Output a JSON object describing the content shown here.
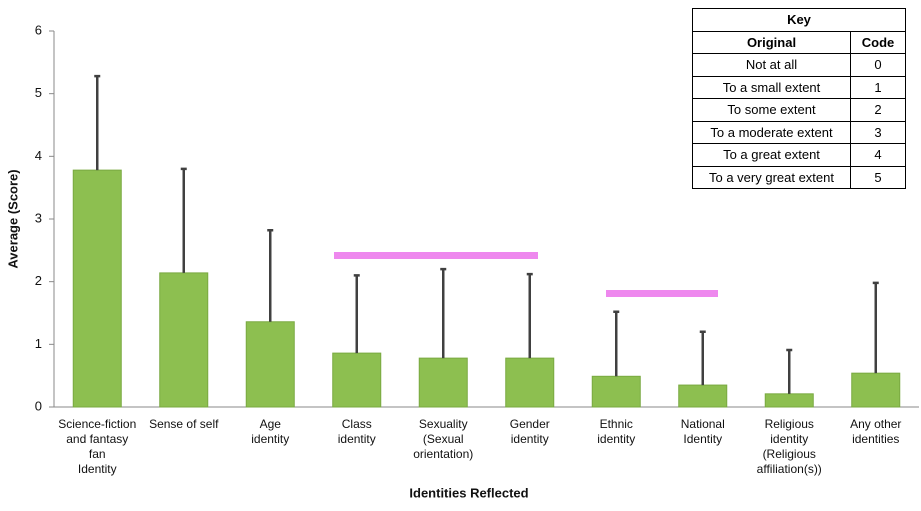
{
  "chart_data": {
    "type": "bar",
    "x_label": "Identities Reflected",
    "y_label": "Average (Score)",
    "categories": [
      [
        "Science-fiction",
        "and fantasy",
        "fan",
        "Identity"
      ],
      [
        "Sense of self"
      ],
      [
        "Age",
        "identity"
      ],
      [
        "Class",
        "identity"
      ],
      [
        "Sexuality",
        "(Sexual",
        "orientation)"
      ],
      [
        "Gender",
        "identity"
      ],
      [
        "Ethnic",
        "identity"
      ],
      [
        "National",
        "Identity"
      ],
      [
        "Religious",
        "identity",
        "(Religious",
        "affiliation(s))"
      ],
      [
        "Any other",
        "identities"
      ]
    ],
    "values": [
      3.78,
      2.14,
      1.36,
      0.86,
      0.78,
      0.78,
      0.49,
      0.35,
      0.21,
      0.54
    ],
    "errors": [
      1.5,
      1.66,
      1.46,
      1.24,
      1.42,
      1.34,
      1.03,
      0.85,
      0.7,
      1.44
    ],
    "color": "#8dbf50",
    "error_color": "#404040",
    "ylim": [
      0,
      6
    ],
    "yticks": [
      0,
      1,
      2,
      3,
      4,
      5,
      6
    ],
    "grid": false
  },
  "key": {
    "title": "Key",
    "headers": [
      "Original",
      "Code"
    ],
    "rows": [
      [
        "Not at all",
        "0"
      ],
      [
        "To a small extent",
        "1"
      ],
      [
        "To some extent",
        "2"
      ],
      [
        "To a moderate extent",
        "3"
      ],
      [
        "To a great extent",
        "4"
      ],
      [
        "To a very great extent",
        "5"
      ]
    ]
  }
}
